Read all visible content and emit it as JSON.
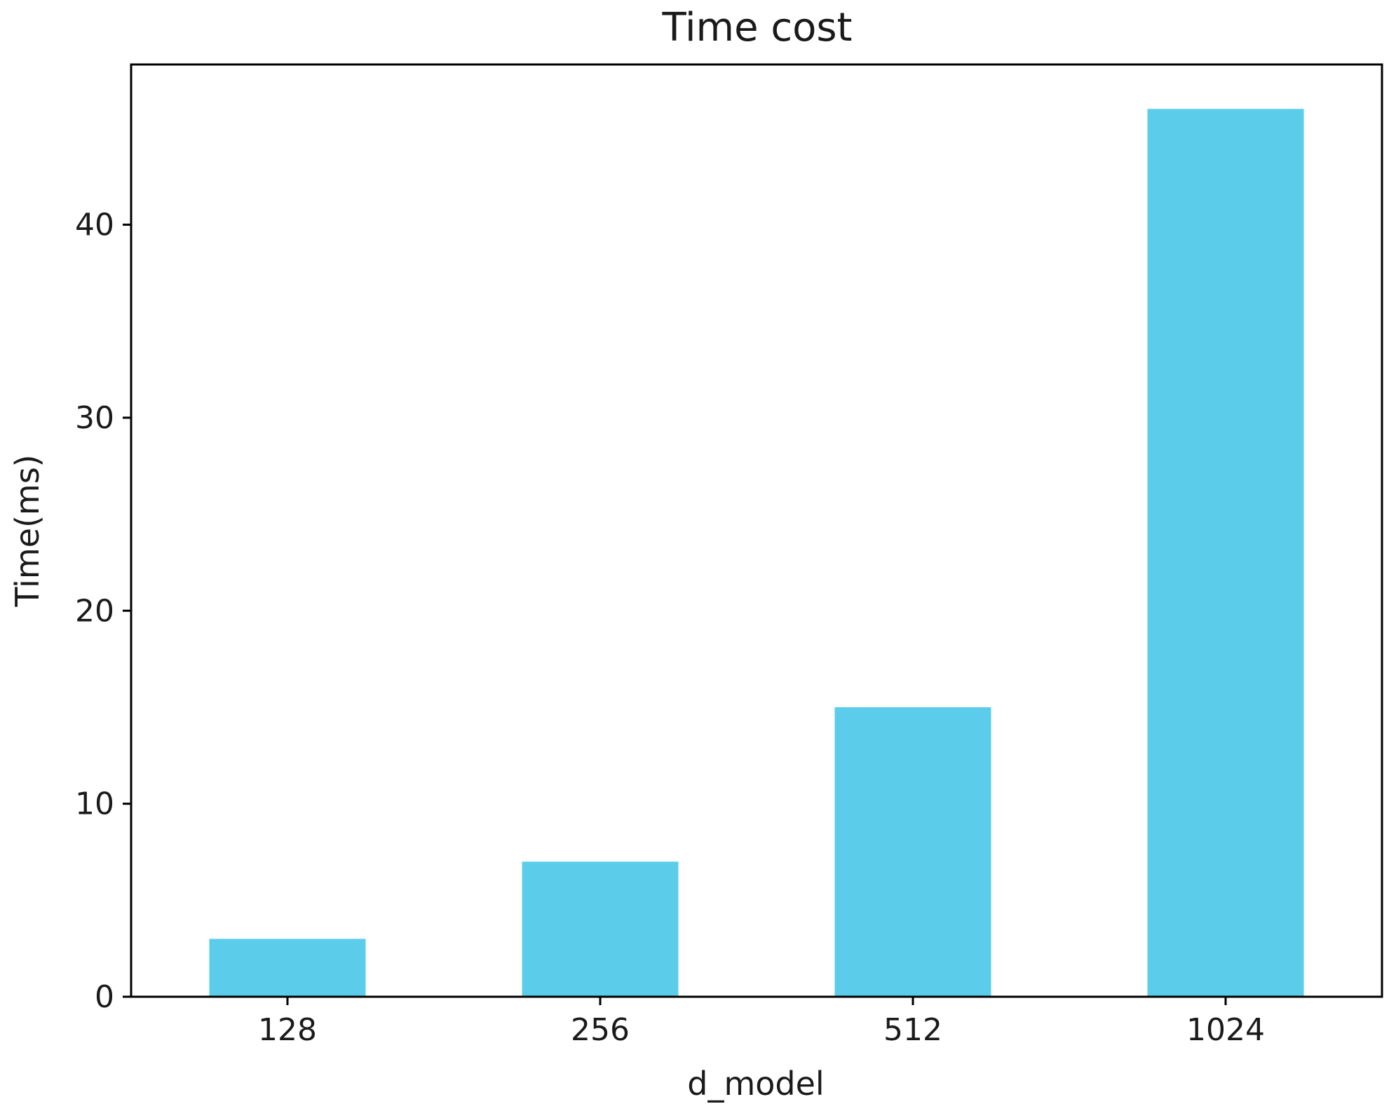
{
  "chart_data": {
    "type": "bar",
    "title": "Time cost",
    "xlabel": "d_model",
    "ylabel": "Time(ms)",
    "categories": [
      "128",
      "256",
      "512",
      "1024"
    ],
    "values": [
      3.0,
      7.0,
      15.0,
      46.0
    ],
    "ylim": [
      0,
      48.3
    ],
    "yticks": [
      0,
      10,
      20,
      30,
      40
    ],
    "grid": false,
    "legend": "none",
    "bar_color": "#5bcdeb"
  }
}
